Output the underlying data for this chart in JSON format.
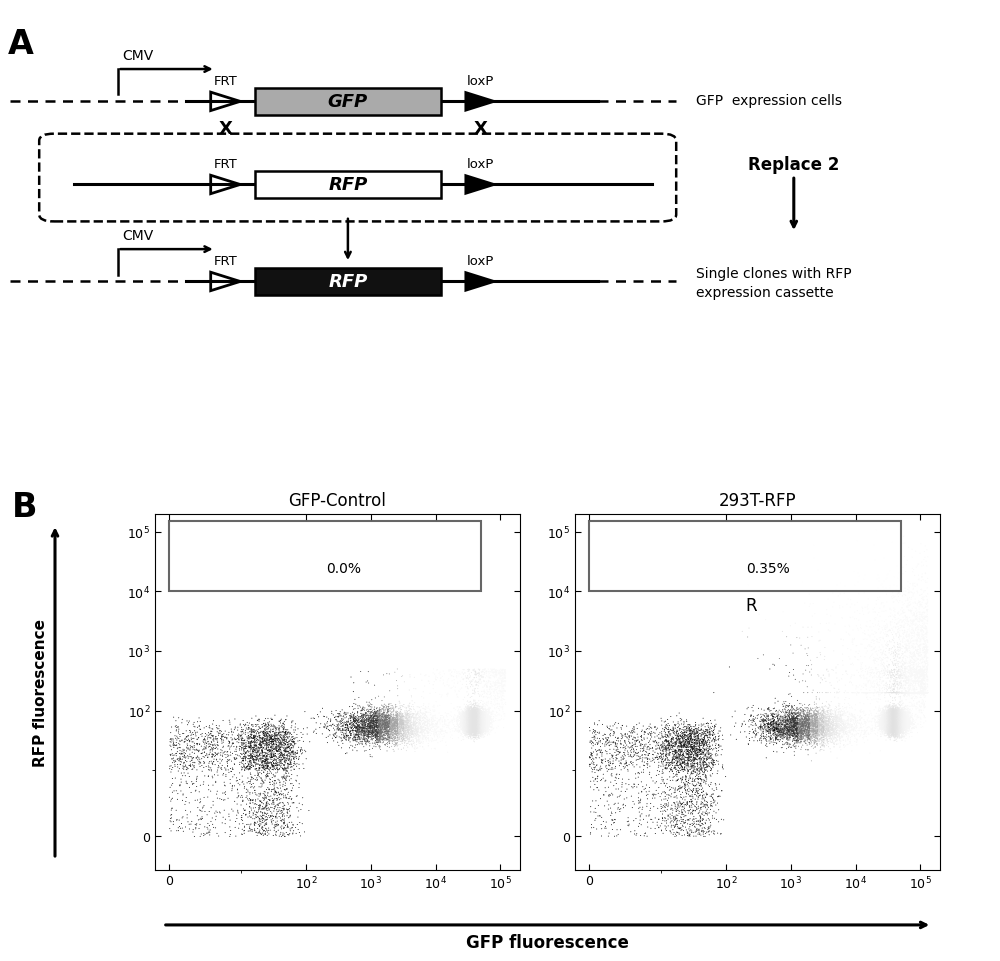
{
  "panel_A_label": "A",
  "panel_B_label": "B",
  "background_color": "#ffffff",
  "row1_label_right": "GFP  expression cells",
  "row1_FRT_label": "FRT",
  "row1_loxP_label": "loxP",
  "row1_gene_label": "GFP",
  "row1_box_color": "#aaaaaa",
  "row1_CMV_label": "CMV",
  "row2_label_FRT": "FRT",
  "row2_label_loxP": "loxP",
  "row2_gene_label": "RFP",
  "row2_box_color": "#ffffff",
  "replace_label": "Replace 2",
  "row3_label_right1": "Single clones with RFP",
  "row3_label_right2": "expression cassette",
  "row3_FRT_label": "FRT",
  "row3_loxP_label": "loxP",
  "row3_gene_label": "RFP",
  "row3_box_color": "#111111",
  "row3_CMV_label": "CMV",
  "plot1_title": "GFP-Control",
  "plot2_title": "293T-RFP",
  "plot1_percent": "0.0%",
  "plot2_percent": "0.35%",
  "plot2_R_label": "R",
  "xlabel": "GFP fluorescence",
  "ylabel": "RFP fluorescence"
}
